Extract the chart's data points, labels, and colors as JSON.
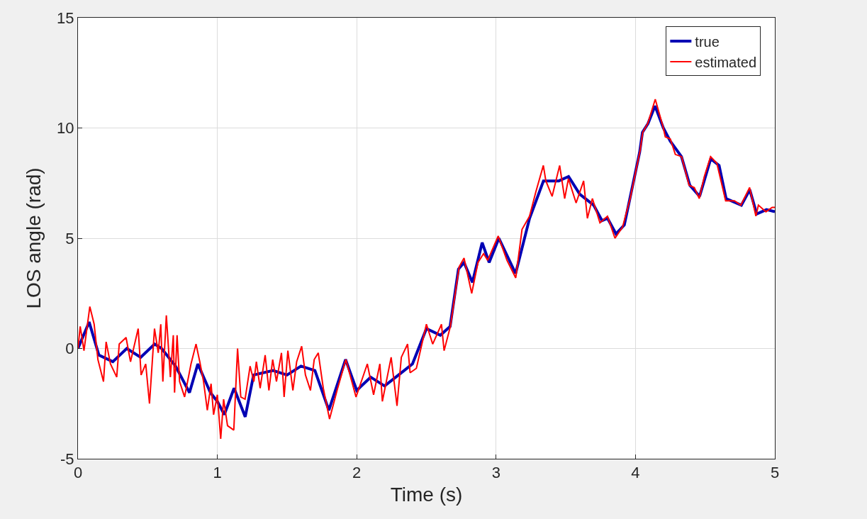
{
  "chart_data": {
    "type": "line",
    "xlabel": "Time (s)",
    "ylabel": "LOS angle (rad)",
    "xlim": [
      0,
      5
    ],
    "xticks": [
      0,
      1,
      2,
      3,
      4,
      5
    ],
    "ylim": [
      -5,
      15
    ],
    "yticks": [
      -5,
      0,
      5,
      10,
      15
    ],
    "grid": true,
    "legend": "top right",
    "line_style": "solid",
    "marker": "none",
    "series": [
      {
        "name": "true",
        "color": "#0000b4",
        "x": [
          0,
          0.08,
          0.15,
          0.25,
          0.35,
          0.45,
          0.55,
          0.6,
          0.7,
          0.8,
          0.86,
          0.95,
          1.0,
          1.05,
          1.12,
          1.2,
          1.26,
          1.4,
          1.5,
          1.6,
          1.7,
          1.8,
          1.92,
          2.0,
          2.1,
          2.2,
          2.3,
          2.4,
          2.5,
          2.6,
          2.67,
          2.73,
          2.77,
          2.83,
          2.9,
          2.95,
          3.02,
          3.14,
          3.24,
          3.34,
          3.45,
          3.52,
          3.6,
          3.7,
          3.76,
          3.8,
          3.86,
          3.92,
          3.96,
          4.03,
          4.05,
          4.09,
          4.14,
          4.2,
          4.25,
          4.33,
          4.39,
          4.46,
          4.54,
          4.6,
          4.65,
          4.76,
          4.82,
          4.87,
          4.94,
          5.0
        ],
        "values": [
          0,
          1.2,
          -0.3,
          -0.6,
          0.0,
          -0.4,
          0.2,
          0.0,
          -0.8,
          -2.0,
          -0.7,
          -2.0,
          -2.4,
          -3.0,
          -1.8,
          -3.1,
          -1.2,
          -1.0,
          -1.2,
          -0.8,
          -1.0,
          -2.8,
          -0.5,
          -1.9,
          -1.3,
          -1.7,
          -1.2,
          -0.7,
          0.9,
          0.6,
          1.0,
          3.6,
          3.9,
          3.0,
          4.8,
          3.9,
          5.0,
          3.4,
          5.9,
          7.6,
          7.6,
          7.8,
          7.0,
          6.5,
          5.8,
          5.9,
          5.2,
          5.6,
          6.8,
          8.9,
          9.8,
          10.2,
          11.0,
          10.0,
          9.4,
          8.7,
          7.4,
          6.9,
          8.6,
          8.3,
          6.8,
          6.5,
          7.2,
          6.1,
          6.3,
          6.2
        ]
      },
      {
        "name": "estimated",
        "color": "#ff0000",
        "x": [
          0,
          0.016,
          0.043,
          0.085,
          0.116,
          0.143,
          0.183,
          0.202,
          0.233,
          0.278,
          0.296,
          0.345,
          0.377,
          0.432,
          0.453,
          0.486,
          0.513,
          0.549,
          0.576,
          0.594,
          0.609,
          0.634,
          0.663,
          0.684,
          0.693,
          0.711,
          0.729,
          0.765,
          0.811,
          0.847,
          0.874,
          0.901,
          0.928,
          0.955,
          0.973,
          1.0,
          1.024,
          1.045,
          1.073,
          1.118,
          1.145,
          1.168,
          1.199,
          1.235,
          1.262,
          1.28,
          1.307,
          1.343,
          1.37,
          1.397,
          1.424,
          1.46,
          1.479,
          1.506,
          1.542,
          1.569,
          1.605,
          1.632,
          1.668,
          1.695,
          1.724,
          1.76,
          1.805,
          1.859,
          1.922,
          1.995,
          2.076,
          2.121,
          2.166,
          2.184,
          2.247,
          2.289,
          2.32,
          2.365,
          2.383,
          2.428,
          2.5,
          2.545,
          2.608,
          2.627,
          2.672,
          2.735,
          2.77,
          2.825,
          2.87,
          2.91,
          2.94,
          3.015,
          3.078,
          3.141,
          3.186,
          3.24,
          3.285,
          3.339,
          3.357,
          3.402,
          3.456,
          3.492,
          3.519,
          3.574,
          3.628,
          3.655,
          3.691,
          3.745,
          3.799,
          3.853,
          3.907,
          3.962,
          4.034,
          4.052,
          4.088,
          4.142,
          4.169,
          4.196,
          4.214,
          4.25,
          4.286,
          4.331,
          4.385,
          4.422,
          4.458,
          4.494,
          4.539,
          4.584,
          4.647,
          4.71,
          4.756,
          4.819,
          4.864,
          4.882,
          4.936,
          4.981,
          5.0
        ],
        "values": [
          0,
          1.0,
          -0.1,
          1.9,
          1.1,
          -0.5,
          -1.5,
          0.3,
          -0.7,
          -1.3,
          0.2,
          0.5,
          -0.6,
          0.9,
          -1.2,
          -0.7,
          -2.5,
          0.9,
          -0.2,
          1.1,
          -1.5,
          1.5,
          -1.3,
          0.6,
          -2.0,
          0.6,
          -1.5,
          -2.2,
          -0.7,
          0.2,
          -0.6,
          -1.5,
          -2.8,
          -1.6,
          -3.0,
          -2.1,
          -4.1,
          -2.3,
          -3.5,
          -3.7,
          0.0,
          -2.2,
          -2.3,
          -0.8,
          -1.5,
          -0.6,
          -1.8,
          -0.3,
          -1.9,
          -0.5,
          -1.5,
          -0.2,
          -2.2,
          -0.1,
          -1.9,
          -0.6,
          0.1,
          -1.2,
          -1.9,
          -0.5,
          -0.2,
          -1.8,
          -3.2,
          -1.9,
          -0.5,
          -2.2,
          -0.7,
          -2.1,
          -0.7,
          -2.4,
          -0.4,
          -2.6,
          -0.4,
          0.2,
          -1.1,
          -0.9,
          1.1,
          0.2,
          1.1,
          -0.1,
          1.0,
          3.7,
          4.1,
          2.5,
          3.9,
          4.3,
          4.0,
          5.1,
          4.0,
          3.2,
          5.4,
          6.0,
          7.1,
          8.3,
          7.6,
          6.9,
          8.3,
          6.8,
          7.7,
          6.6,
          7.6,
          5.9,
          6.8,
          5.7,
          6.0,
          5.0,
          5.5,
          6.8,
          9.0,
          9.8,
          10.2,
          11.3,
          10.7,
          10.1,
          9.6,
          9.5,
          8.8,
          8.7,
          7.4,
          7.3,
          6.8,
          7.8,
          8.7,
          8.4,
          6.7,
          6.7,
          6.5,
          7.3,
          6.0,
          6.5,
          6.2,
          6.4,
          6.4
        ]
      }
    ]
  }
}
